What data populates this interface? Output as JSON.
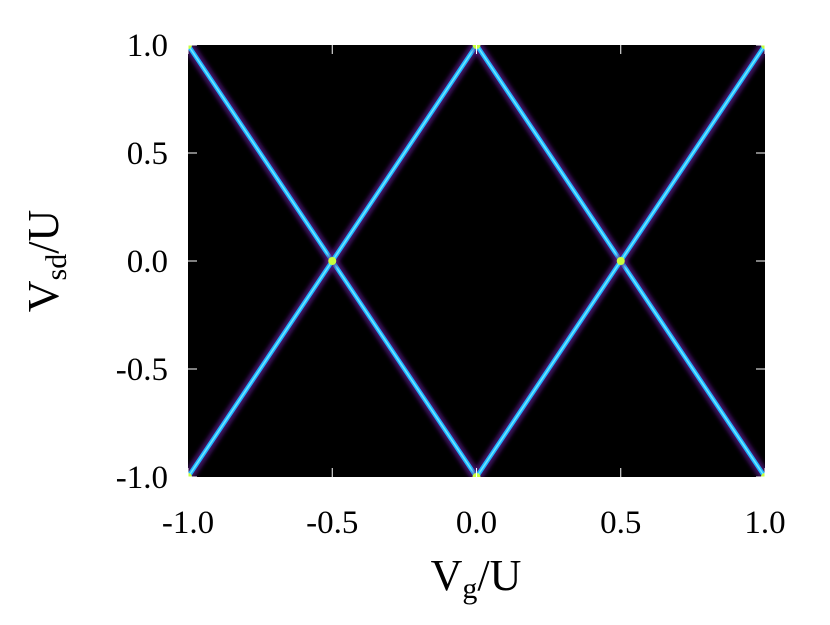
{
  "chart_data": {
    "type": "heatmap",
    "title": "",
    "xlabel": {
      "main": "V",
      "sub": "g",
      "rest": "/U"
    },
    "ylabel": {
      "main": "V",
      "sub": "sd",
      "rest": "/U"
    },
    "xlim": [
      -1.0,
      1.0
    ],
    "ylim": [
      -1.0,
      1.0
    ],
    "x_ticks": [
      -1.0,
      -0.5,
      0.0,
      0.5,
      1.0
    ],
    "x_tick_labels": [
      "-1.0",
      "-0.5",
      "0.0",
      "0.5",
      "1.0"
    ],
    "y_ticks": [
      -1.0,
      -0.5,
      0.0,
      0.5,
      1.0
    ],
    "y_tick_labels": [
      "-1.0",
      "-0.5",
      "0.0",
      "0.5",
      "1.0"
    ],
    "grid": false,
    "background_color": "#000000",
    "line_color": "#1fb6ff",
    "line_core_color": "#7ff6ff",
    "glow_color": "#5a1a8a",
    "crossing_color": "#c8ff40",
    "lines": [
      {
        "name": "",
        "x": [
          -1.0,
          0.0
        ],
        "y": [
          1.0,
          -1.0
        ]
      },
      {
        "name": "",
        "x": [
          -1.0,
          0.0
        ],
        "y": [
          -1.0,
          1.0
        ]
      },
      {
        "name": "",
        "x": [
          0.0,
          1.0
        ],
        "y": [
          1.0,
          -1.0
        ]
      },
      {
        "name": "",
        "x": [
          0.0,
          1.0
        ],
        "y": [
          -1.0,
          1.0
        ]
      }
    ],
    "crossings": [
      {
        "x": -0.5,
        "y": 0.0
      },
      {
        "x": 0.5,
        "y": 0.0
      },
      {
        "x": 0.0,
        "y": 1.0
      },
      {
        "x": 0.0,
        "y": -1.0
      },
      {
        "x": 1.0,
        "y": 1.0
      },
      {
        "x": 1.0,
        "y": -1.0
      },
      {
        "x": -1.0,
        "y": 1.0
      },
      {
        "x": -1.0,
        "y": -1.0
      }
    ]
  }
}
